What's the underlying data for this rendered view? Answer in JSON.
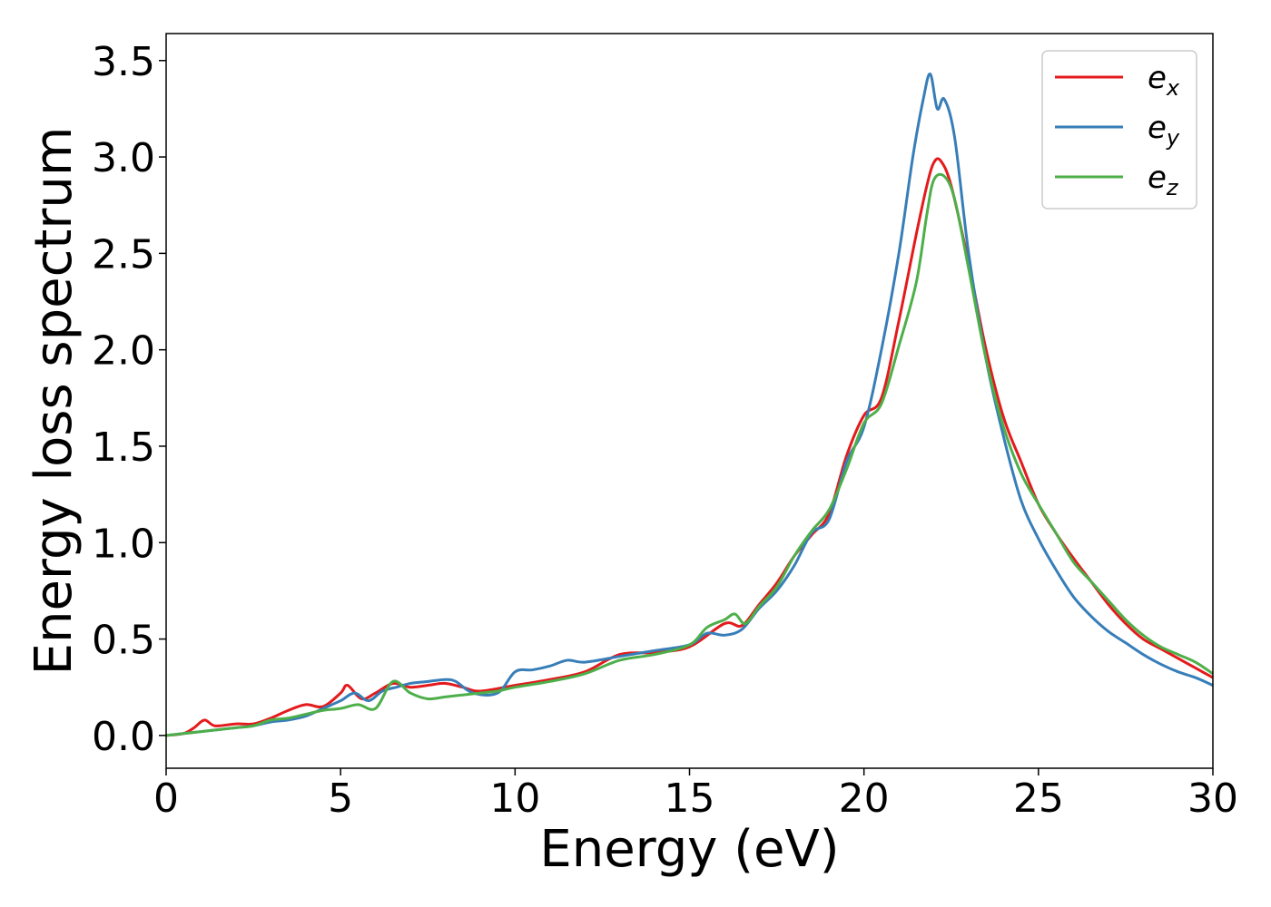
{
  "chart_data": {
    "type": "line",
    "xlabel": "Energy (eV)",
    "ylabel": "Energy loss spectrum",
    "xlim": [
      0,
      30
    ],
    "ylim": [
      -0.17,
      3.64
    ],
    "xticks": [
      0,
      5,
      10,
      15,
      20,
      25,
      30
    ],
    "xtick_labels": [
      "0",
      "5",
      "10",
      "15",
      "20",
      "25",
      "30"
    ],
    "yticks": [
      0.0,
      0.5,
      1.0,
      1.5,
      2.0,
      2.5,
      3.0,
      3.5
    ],
    "ytick_labels": [
      "0.0",
      "0.5",
      "1.0",
      "1.5",
      "2.0",
      "2.5",
      "3.0",
      "3.5"
    ],
    "grid": false,
    "legend_position": "top-right",
    "series": [
      {
        "name": "e",
        "subscript": "x",
        "color": "#e41a1c",
        "x": [
          0,
          0.5,
          0.8,
          1.1,
          1.4,
          2.0,
          2.5,
          3.0,
          3.5,
          4.0,
          4.5,
          5.0,
          5.2,
          5.6,
          6.0,
          6.5,
          7.0,
          7.5,
          8.0,
          8.5,
          9.0,
          10.0,
          11.0,
          12.0,
          13.0,
          14.0,
          15.0,
          16.0,
          16.5,
          17.0,
          17.5,
          18.0,
          18.5,
          19.0,
          19.5,
          20.0,
          20.5,
          21.0,
          21.5,
          21.8,
          22.0,
          22.2,
          22.5,
          23.0,
          23.5,
          24.0,
          24.5,
          25.0,
          25.5,
          26.0,
          26.5,
          27.0,
          27.5,
          28.0,
          28.5,
          29.0,
          29.5,
          30.0
        ],
        "y": [
          0.0,
          0.01,
          0.04,
          0.08,
          0.05,
          0.06,
          0.06,
          0.09,
          0.13,
          0.16,
          0.15,
          0.22,
          0.26,
          0.19,
          0.22,
          0.27,
          0.25,
          0.26,
          0.27,
          0.25,
          0.23,
          0.26,
          0.29,
          0.33,
          0.42,
          0.43,
          0.46,
          0.58,
          0.57,
          0.68,
          0.79,
          0.93,
          1.04,
          1.15,
          1.45,
          1.66,
          1.75,
          2.15,
          2.6,
          2.85,
          2.97,
          2.98,
          2.85,
          2.45,
          2.0,
          1.65,
          1.42,
          1.2,
          1.05,
          0.92,
          0.8,
          0.68,
          0.58,
          0.5,
          0.45,
          0.4,
          0.35,
          0.3
        ]
      },
      {
        "name": "e",
        "subscript": "y",
        "color": "#377eb8",
        "x": [
          0,
          0.5,
          1.0,
          1.5,
          2.0,
          2.5,
          3.0,
          3.5,
          4.0,
          4.5,
          5.0,
          5.4,
          5.8,
          6.2,
          6.6,
          7.0,
          7.5,
          8.0,
          8.3,
          8.8,
          9.5,
          10.0,
          10.5,
          11.0,
          11.5,
          12.0,
          13.0,
          14.0,
          15.0,
          15.5,
          16.0,
          16.5,
          17.0,
          17.5,
          18.0,
          18.5,
          19.0,
          19.5,
          20.0,
          20.5,
          21.0,
          21.4,
          21.7,
          21.9,
          22.1,
          22.3,
          22.6,
          23.0,
          23.5,
          24.0,
          24.5,
          25.0,
          25.5,
          26.0,
          26.5,
          27.0,
          27.5,
          28.0,
          28.5,
          29.0,
          29.5,
          30.0
        ],
        "y": [
          0.0,
          0.01,
          0.02,
          0.03,
          0.04,
          0.05,
          0.07,
          0.08,
          0.1,
          0.14,
          0.18,
          0.22,
          0.18,
          0.23,
          0.25,
          0.27,
          0.28,
          0.29,
          0.28,
          0.22,
          0.22,
          0.33,
          0.34,
          0.36,
          0.39,
          0.38,
          0.41,
          0.44,
          0.47,
          0.53,
          0.52,
          0.55,
          0.66,
          0.75,
          0.88,
          1.05,
          1.12,
          1.42,
          1.6,
          2.0,
          2.5,
          3.0,
          3.3,
          3.43,
          3.25,
          3.3,
          3.1,
          2.5,
          1.95,
          1.55,
          1.22,
          1.02,
          0.86,
          0.72,
          0.62,
          0.54,
          0.48,
          0.42,
          0.37,
          0.33,
          0.3,
          0.26
        ]
      },
      {
        "name": "e",
        "subscript": "z",
        "color": "#4daf4a",
        "x": [
          0,
          0.5,
          1.0,
          1.5,
          2.0,
          2.5,
          3.0,
          3.5,
          4.0,
          4.5,
          5.0,
          5.5,
          6.0,
          6.5,
          7.0,
          7.5,
          8.0,
          8.5,
          9.0,
          9.5,
          10.0,
          11.0,
          12.0,
          13.0,
          14.0,
          15.0,
          15.5,
          16.0,
          16.3,
          16.6,
          17.0,
          17.5,
          18.0,
          18.5,
          19.0,
          19.5,
          20.0,
          20.5,
          21.0,
          21.5,
          21.8,
          22.0,
          22.3,
          22.6,
          23.0,
          23.5,
          24.0,
          24.5,
          25.0,
          25.5,
          26.0,
          26.5,
          27.0,
          27.5,
          28.0,
          28.5,
          29.0,
          29.5,
          30.0
        ],
        "y": [
          0.0,
          0.01,
          0.02,
          0.03,
          0.04,
          0.05,
          0.08,
          0.09,
          0.11,
          0.13,
          0.14,
          0.16,
          0.14,
          0.28,
          0.22,
          0.19,
          0.2,
          0.21,
          0.22,
          0.23,
          0.25,
          0.28,
          0.32,
          0.39,
          0.42,
          0.47,
          0.56,
          0.6,
          0.63,
          0.58,
          0.67,
          0.77,
          0.93,
          1.06,
          1.17,
          1.38,
          1.62,
          1.72,
          2.02,
          2.35,
          2.7,
          2.88,
          2.9,
          2.78,
          2.42,
          1.95,
          1.6,
          1.36,
          1.2,
          1.05,
          0.9,
          0.8,
          0.7,
          0.6,
          0.52,
          0.46,
          0.42,
          0.38,
          0.32
        ]
      }
    ]
  }
}
